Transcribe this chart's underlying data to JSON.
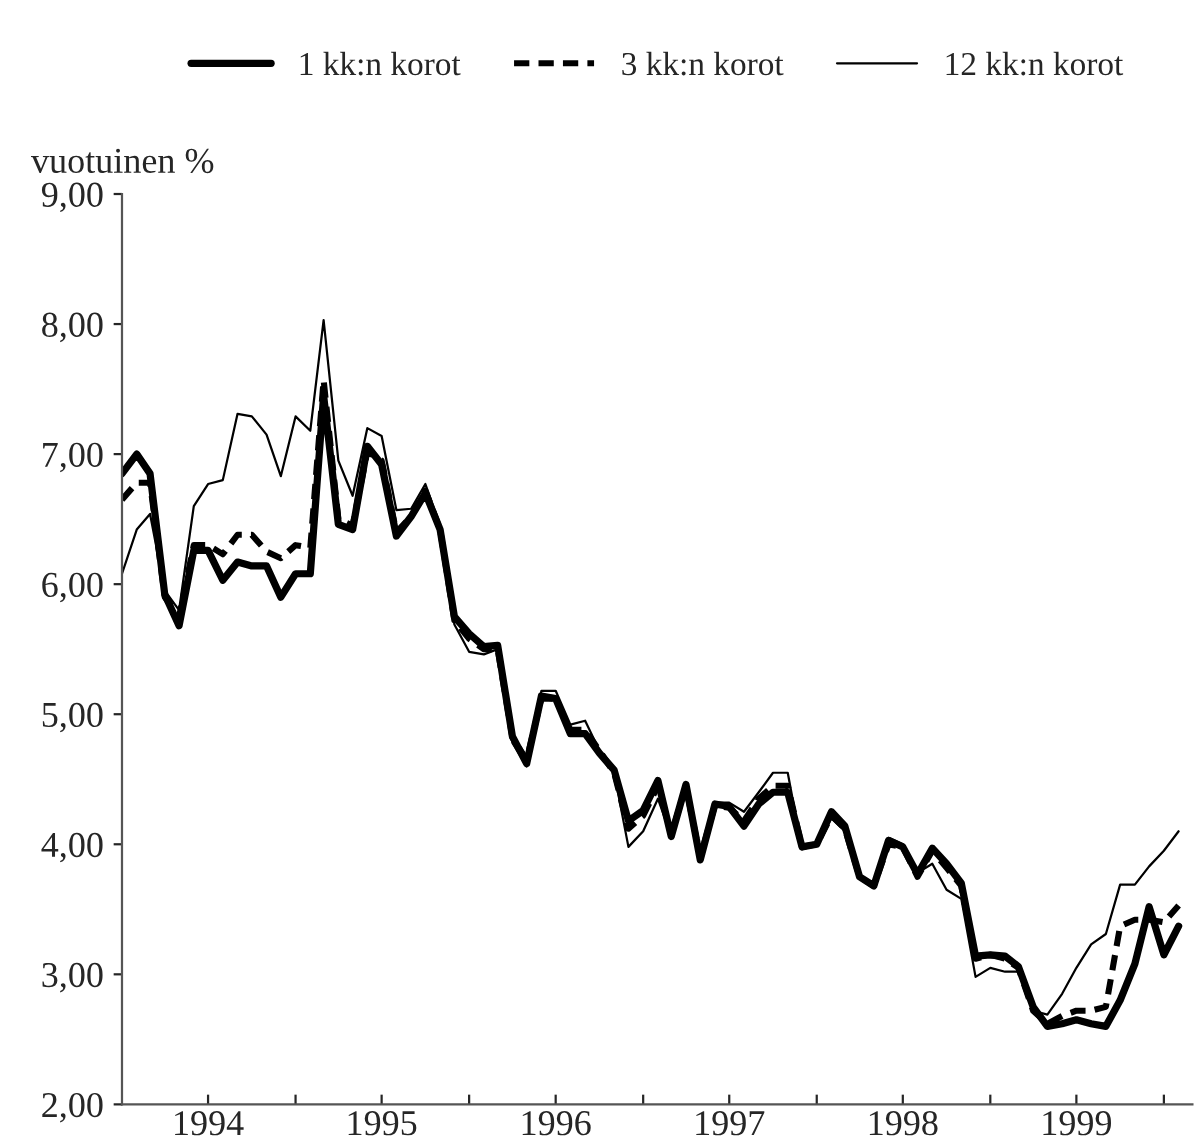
{
  "chart_data": {
    "type": "line",
    "ylabel": "vuotuinen %",
    "x": [
      "1994-01",
      "1994-02",
      "1994-03",
      "1994-04",
      "1994-05",
      "1994-06",
      "1994-07",
      "1994-08",
      "1994-09",
      "1994-10",
      "1994-11",
      "1994-12",
      "1995-01",
      "1995-02",
      "1995-03",
      "1995-04",
      "1995-05",
      "1995-06",
      "1995-07",
      "1995-08",
      "1995-09",
      "1995-10",
      "1995-11",
      "1995-12",
      "1996-01",
      "1996-02",
      "1996-03",
      "1996-04",
      "1996-05",
      "1996-06",
      "1996-07",
      "1996-08",
      "1996-09",
      "1996-10",
      "1996-11",
      "1996-12",
      "1997-01",
      "1997-02",
      "1997-03",
      "1997-04",
      "1997-05",
      "1997-06",
      "1997-07",
      "1997-08",
      "1997-09",
      "1997-10",
      "1997-11",
      "1997-12",
      "1998-01",
      "1998-02",
      "1998-03",
      "1998-04",
      "1998-05",
      "1998-06",
      "1998-07",
      "1998-08",
      "1998-09",
      "1998-10",
      "1998-11",
      "1998-12",
      "1999-01",
      "1999-02",
      "1999-03",
      "1999-04",
      "1999-05",
      "1999-06",
      "1999-07",
      "1999-08",
      "1999-09",
      "1999-10",
      "1999-11",
      "1999-12",
      "2000-01",
      "2000-02"
    ],
    "series": [
      {
        "name": "1 kk:n korot",
        "color": "#000000",
        "line_style": "solid",
        "values": [
          6.85,
          7.0,
          6.85,
          5.92,
          5.68,
          6.26,
          6.26,
          6.03,
          6.17,
          6.14,
          6.14,
          5.9,
          6.08,
          6.08,
          7.45,
          6.46,
          6.42,
          7.06,
          6.92,
          6.37,
          6.52,
          6.7,
          6.42,
          5.75,
          5.62,
          5.52,
          5.53,
          4.83,
          4.62,
          5.14,
          5.12,
          4.85,
          4.85,
          4.7,
          4.57,
          4.18,
          4.26,
          4.49,
          4.06,
          4.46,
          3.88,
          4.31,
          4.29,
          4.14,
          4.31,
          4.4,
          4.4,
          3.98,
          4.0,
          4.25,
          4.14,
          3.75,
          3.68,
          4.03,
          3.98,
          3.77,
          3.97,
          3.85,
          3.7,
          3.14,
          3.15,
          3.14,
          3.06,
          2.75,
          2.6,
          2.62,
          2.65,
          2.62,
          2.6,
          2.8,
          3.08,
          3.52,
          3.15,
          3.37
        ]
      },
      {
        "name": "3 kk:n korot",
        "color": "#000000",
        "line_style": "dashed",
        "values": [
          6.65,
          6.78,
          6.78,
          5.9,
          5.75,
          6.3,
          6.3,
          6.23,
          6.38,
          6.38,
          6.25,
          6.2,
          6.3,
          6.28,
          7.57,
          6.5,
          6.45,
          7.02,
          6.95,
          6.4,
          6.52,
          6.72,
          6.42,
          5.72,
          5.58,
          5.5,
          5.5,
          4.82,
          4.65,
          5.12,
          5.12,
          4.88,
          4.88,
          4.72,
          4.55,
          4.12,
          4.22,
          4.45,
          4.08,
          4.44,
          3.9,
          4.3,
          4.28,
          4.18,
          4.35,
          4.45,
          4.45,
          3.98,
          4.0,
          4.22,
          4.12,
          3.75,
          3.68,
          4.0,
          3.98,
          3.75,
          3.95,
          3.82,
          3.68,
          3.12,
          3.15,
          3.12,
          3.05,
          2.72,
          2.62,
          2.68,
          2.72,
          2.72,
          2.75,
          3.37,
          3.42,
          3.42,
          3.4,
          3.53
        ]
      },
      {
        "name": "12 kk:n korot",
        "color": "#000000",
        "line_style": "solid",
        "values": [
          6.08,
          6.42,
          6.54,
          5.95,
          5.8,
          6.6,
          6.77,
          6.8,
          7.31,
          7.29,
          7.15,
          6.83,
          7.29,
          7.18,
          8.03,
          6.95,
          6.68,
          7.2,
          7.14,
          6.57,
          6.58,
          6.77,
          6.45,
          5.69,
          5.48,
          5.46,
          5.5,
          4.78,
          4.6,
          5.18,
          5.18,
          4.92,
          4.95,
          4.72,
          4.55,
          3.98,
          4.1,
          4.35,
          4.06,
          4.44,
          3.9,
          4.32,
          4.32,
          4.25,
          4.4,
          4.55,
          4.55,
          3.96,
          4.0,
          4.2,
          4.1,
          3.75,
          3.7,
          4.05,
          4.0,
          3.78,
          3.85,
          3.65,
          3.58,
          2.98,
          3.05,
          3.02,
          3.02,
          2.72,
          2.69,
          2.85,
          3.05,
          3.23,
          3.31,
          3.69,
          3.69,
          3.83,
          3.95,
          4.1
        ]
      }
    ],
    "xlim": [
      "1994-01",
      "2000-03"
    ],
    "xticks": [
      {
        "value": "1994-07",
        "label": "1994"
      },
      {
        "value": "1995-01",
        "label": null
      },
      {
        "value": "1995-07",
        "label": "1995"
      },
      {
        "value": "1996-01",
        "label": null
      },
      {
        "value": "1996-07",
        "label": "1996"
      },
      {
        "value": "1997-01",
        "label": null
      },
      {
        "value": "1997-07",
        "label": "1997"
      },
      {
        "value": "1998-01",
        "label": null
      },
      {
        "value": "1998-07",
        "label": "1998"
      },
      {
        "value": "1999-01",
        "label": null
      },
      {
        "value": "1999-07",
        "label": "1999"
      },
      {
        "value": "2000-01",
        "label": null
      }
    ],
    "ylim": [
      2,
      9
    ],
    "yticks": [
      {
        "value": 2,
        "label": "2,00"
      },
      {
        "value": 3,
        "label": "3,00"
      },
      {
        "value": 4,
        "label": "4,00"
      },
      {
        "value": 5,
        "label": "5,00"
      },
      {
        "value": 6,
        "label": "6,00"
      },
      {
        "value": 7,
        "label": "7,00"
      },
      {
        "value": 8,
        "label": "8,00"
      },
      {
        "value": 9,
        "label": "9,00"
      }
    ],
    "grid": false,
    "legend": "top",
    "marker": "none"
  }
}
